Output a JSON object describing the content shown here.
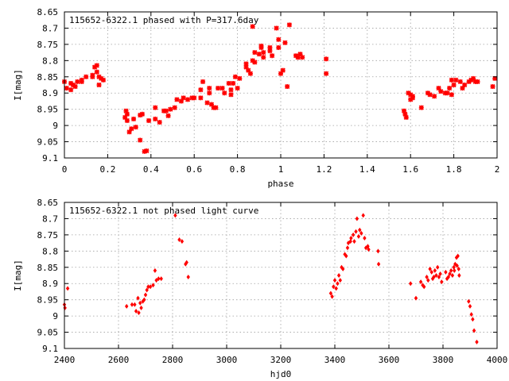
{
  "chart_data": [
    {
      "type": "scatter",
      "title": "115652-6322.1 phased with P=317.6day",
      "xlabel": "phase",
      "ylabel": "I[mag]",
      "xlim": [
        0,
        2
      ],
      "ylim": [
        8.65,
        9.1
      ],
      "y_inverted": true,
      "grid": true,
      "marker": "cross",
      "color": "#ff0000",
      "xticks": [
        "0",
        "0.2",
        "0.4",
        "0.6",
        "0.8",
        "1",
        "1.2",
        "1.4",
        "1.6",
        "1.8",
        "2"
      ],
      "yticks": [
        "8.65",
        "8.7",
        "8.75",
        "8.8",
        "8.85",
        "8.9",
        "8.95",
        "9",
        "9.05",
        "9.1"
      ],
      "points": [
        [
          0.0,
          8.865
        ],
        [
          0.01,
          8.885
        ],
        [
          0.03,
          8.87
        ],
        [
          0.03,
          8.89
        ],
        [
          0.04,
          8.875
        ],
        [
          0.05,
          8.88
        ],
        [
          0.06,
          8.865
        ],
        [
          0.08,
          8.86
        ],
        [
          0.08,
          8.865
        ],
        [
          0.1,
          8.85
        ],
        [
          0.13,
          8.85
        ],
        [
          0.13,
          8.845
        ],
        [
          0.14,
          8.82
        ],
        [
          0.15,
          8.815
        ],
        [
          0.15,
          8.835
        ],
        [
          0.16,
          8.85
        ],
        [
          0.16,
          8.875
        ],
        [
          0.17,
          8.855
        ],
        [
          0.18,
          8.86
        ],
        [
          0.28,
          8.975
        ],
        [
          0.285,
          8.955
        ],
        [
          0.29,
          8.965
        ],
        [
          0.29,
          8.985
        ],
        [
          0.3,
          9.02
        ],
        [
          0.31,
          9.01
        ],
        [
          0.32,
          8.98
        ],
        [
          0.33,
          9.005
        ],
        [
          0.35,
          9.045
        ],
        [
          0.35,
          8.968
        ],
        [
          0.36,
          8.965
        ],
        [
          0.37,
          9.08
        ],
        [
          0.38,
          9.078
        ],
        [
          0.39,
          8.985
        ],
        [
          0.42,
          8.945
        ],
        [
          0.42,
          8.98
        ],
        [
          0.44,
          8.99
        ],
        [
          0.46,
          8.955
        ],
        [
          0.47,
          8.955
        ],
        [
          0.48,
          8.97
        ],
        [
          0.49,
          8.95
        ],
        [
          0.51,
          8.945
        ],
        [
          0.52,
          8.92
        ],
        [
          0.54,
          8.925
        ],
        [
          0.55,
          8.915
        ],
        [
          0.57,
          8.92
        ],
        [
          0.59,
          8.915
        ],
        [
          0.6,
          8.915
        ],
        [
          0.63,
          8.915
        ],
        [
          0.63,
          8.89
        ],
        [
          0.64,
          8.865
        ],
        [
          0.66,
          8.93
        ],
        [
          0.67,
          8.885
        ],
        [
          0.67,
          8.9
        ],
        [
          0.68,
          8.935
        ],
        [
          0.69,
          8.945
        ],
        [
          0.7,
          8.945
        ],
        [
          0.71,
          8.885
        ],
        [
          0.73,
          8.885
        ],
        [
          0.74,
          8.9
        ],
        [
          0.76,
          8.87
        ],
        [
          0.77,
          8.905
        ],
        [
          0.77,
          8.89
        ],
        [
          0.78,
          8.87
        ],
        [
          0.79,
          8.85
        ],
        [
          0.8,
          8.885
        ],
        [
          0.81,
          8.855
        ],
        [
          0.84,
          8.82
        ],
        [
          0.84,
          8.81
        ],
        [
          0.85,
          8.83
        ],
        [
          0.86,
          8.84
        ],
        [
          0.87,
          8.8
        ],
        [
          0.87,
          8.695
        ],
        [
          0.88,
          8.775
        ],
        [
          0.88,
          8.805
        ],
        [
          0.9,
          8.78
        ],
        [
          0.91,
          8.755
        ],
        [
          0.91,
          8.76
        ],
        [
          0.92,
          8.775
        ],
        [
          0.92,
          8.79
        ],
        [
          0.95,
          8.76
        ],
        [
          0.95,
          8.77
        ],
        [
          0.96,
          8.785
        ],
        [
          0.98,
          8.7
        ],
        [
          0.99,
          8.76
        ],
        [
          0.99,
          8.735
        ],
        [
          1.0,
          8.84
        ],
        [
          1.01,
          8.83
        ],
        [
          1.02,
          8.745
        ],
        [
          1.03,
          8.88
        ],
        [
          1.04,
          8.69
        ],
        [
          1.07,
          8.785
        ],
        [
          1.08,
          8.79
        ],
        [
          1.08,
          8.79
        ],
        [
          1.09,
          8.78
        ],
        [
          1.1,
          8.79
        ],
        [
          1.21,
          8.795
        ],
        [
          1.21,
          8.84
        ],
        [
          1.57,
          8.955
        ],
        [
          1.575,
          8.965
        ],
        [
          1.58,
          8.975
        ],
        [
          1.59,
          8.9
        ],
        [
          1.6,
          8.905
        ],
        [
          1.6,
          8.92
        ],
        [
          1.61,
          8.915
        ],
        [
          1.61,
          8.91
        ],
        [
          1.65,
          8.945
        ],
        [
          1.68,
          8.9
        ],
        [
          1.69,
          8.905
        ],
        [
          1.71,
          8.91
        ],
        [
          1.73,
          8.885
        ],
        [
          1.74,
          8.895
        ],
        [
          1.76,
          8.9
        ],
        [
          1.77,
          8.9
        ],
        [
          1.78,
          8.885
        ],
        [
          1.79,
          8.86
        ],
        [
          1.79,
          8.905
        ],
        [
          1.8,
          8.875
        ],
        [
          1.81,
          8.86
        ],
        [
          1.83,
          8.865
        ],
        [
          1.84,
          8.885
        ],
        [
          1.85,
          8.875
        ],
        [
          1.87,
          8.865
        ],
        [
          1.88,
          8.86
        ],
        [
          1.89,
          8.855
        ],
        [
          1.9,
          8.865
        ],
        [
          1.91,
          8.865
        ],
        [
          1.98,
          8.88
        ],
        [
          1.99,
          8.855
        ]
      ]
    },
    {
      "type": "scatter",
      "title": "115652-6322.1 not phased light curve",
      "xlabel": "hjd0",
      "ylabel": "I[mag]",
      "xlim": [
        2400,
        4000
      ],
      "ylim": [
        8.65,
        9.1
      ],
      "y_inverted": true,
      "grid": true,
      "marker": "diamond",
      "color": "#ff0000",
      "xticks": [
        "2400",
        "2600",
        "2800",
        "3000",
        "3200",
        "3400",
        "3600",
        "3800",
        "4000"
      ],
      "yticks": [
        "8.65",
        "8.7",
        "8.75",
        "8.8",
        "8.85",
        "8.9",
        "8.95",
        "9",
        "9.05",
        "9.1"
      ],
      "points": [
        [
          2400,
          8.965
        ],
        [
          2402,
          8.975
        ],
        [
          2412,
          8.915
        ],
        [
          2630,
          8.97
        ],
        [
          2650,
          8.965
        ],
        [
          2660,
          8.965
        ],
        [
          2665,
          8.985
        ],
        [
          2672,
          8.945
        ],
        [
          2675,
          8.99
        ],
        [
          2680,
          8.96
        ],
        [
          2684,
          8.975
        ],
        [
          2690,
          8.955
        ],
        [
          2695,
          8.95
        ],
        [
          2700,
          8.935
        ],
        [
          2705,
          8.92
        ],
        [
          2710,
          8.91
        ],
        [
          2718,
          8.91
        ],
        [
          2728,
          8.905
        ],
        [
          2735,
          8.86
        ],
        [
          2740,
          8.89
        ],
        [
          2748,
          8.885
        ],
        [
          2758,
          8.885
        ],
        [
          2810,
          8.69
        ],
        [
          2825,
          8.765
        ],
        [
          2835,
          8.77
        ],
        [
          2848,
          8.84
        ],
        [
          2852,
          8.835
        ],
        [
          2858,
          8.88
        ],
        [
          3385,
          8.93
        ],
        [
          3390,
          8.94
        ],
        [
          3395,
          8.91
        ],
        [
          3400,
          8.89
        ],
        [
          3405,
          8.915
        ],
        [
          3410,
          8.9
        ],
        [
          3415,
          8.875
        ],
        [
          3420,
          8.89
        ],
        [
          3425,
          8.85
        ],
        [
          3430,
          8.855
        ],
        [
          3437,
          8.81
        ],
        [
          3442,
          8.815
        ],
        [
          3447,
          8.79
        ],
        [
          3450,
          8.775
        ],
        [
          3458,
          8.77
        ],
        [
          3460,
          8.76
        ],
        [
          3468,
          8.75
        ],
        [
          3472,
          8.77
        ],
        [
          3478,
          8.74
        ],
        [
          3482,
          8.7
        ],
        [
          3488,
          8.755
        ],
        [
          3492,
          8.735
        ],
        [
          3498,
          8.745
        ],
        [
          3505,
          8.69
        ],
        [
          3510,
          8.76
        ],
        [
          3515,
          8.79
        ],
        [
          3522,
          8.785
        ],
        [
          3525,
          8.795
        ],
        [
          3560,
          8.8
        ],
        [
          3562,
          8.84
        ],
        [
          3680,
          8.9
        ],
        [
          3700,
          8.945
        ],
        [
          3718,
          8.895
        ],
        [
          3725,
          8.905
        ],
        [
          3730,
          8.91
        ],
        [
          3740,
          8.88
        ],
        [
          3745,
          8.89
        ],
        [
          3752,
          8.855
        ],
        [
          3758,
          8.865
        ],
        [
          3762,
          8.885
        ],
        [
          3766,
          8.88
        ],
        [
          3770,
          8.86
        ],
        [
          3775,
          8.875
        ],
        [
          3780,
          8.85
        ],
        [
          3785,
          8.88
        ],
        [
          3790,
          8.87
        ],
        [
          3795,
          8.895
        ],
        [
          3810,
          8.865
        ],
        [
          3815,
          8.885
        ],
        [
          3820,
          8.88
        ],
        [
          3825,
          8.87
        ],
        [
          3830,
          8.86
        ],
        [
          3835,
          8.875
        ],
        [
          3840,
          8.85
        ],
        [
          3842,
          8.86
        ],
        [
          3845,
          8.84
        ],
        [
          3850,
          8.82
        ],
        [
          3852,
          8.845
        ],
        [
          3855,
          8.815
        ],
        [
          3858,
          8.855
        ],
        [
          3860,
          8.875
        ],
        [
          3895,
          8.955
        ],
        [
          3900,
          8.97
        ],
        [
          3905,
          8.995
        ],
        [
          3910,
          9.01
        ],
        [
          3915,
          9.045
        ],
        [
          3925,
          9.08
        ]
      ]
    }
  ]
}
